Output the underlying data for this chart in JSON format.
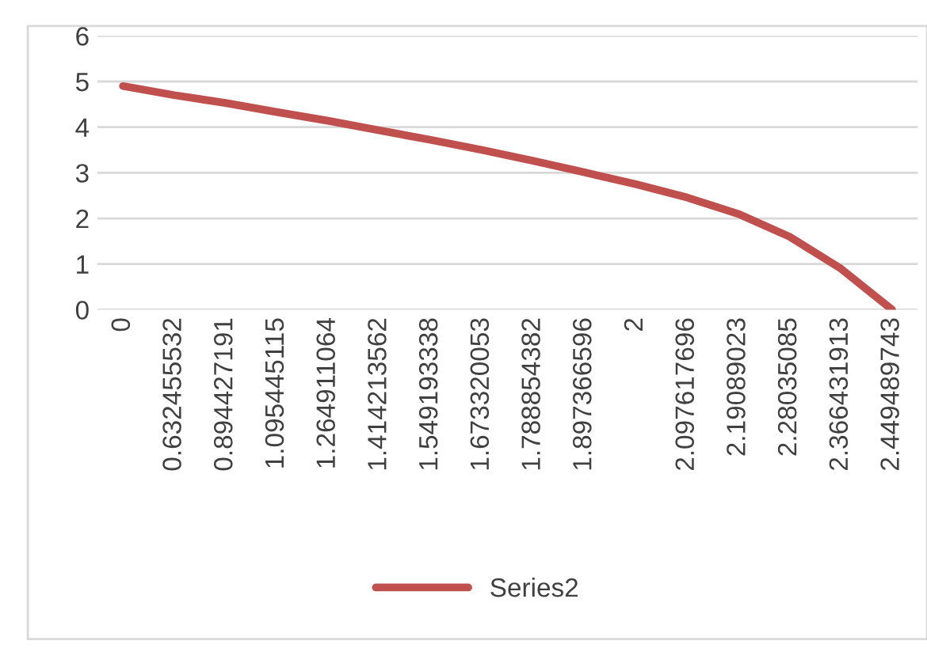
{
  "chart_data": {
    "type": "line",
    "categories": [
      "0",
      "0.632455532",
      "0.894427191",
      "1.095445115",
      "1.264911064",
      "1.414213562",
      "1.549193338",
      "1.673320053",
      "1.788854382",
      "1.897366596",
      "2",
      "2.097617696",
      "2.19089023",
      "2.28035085",
      "2.366431913",
      "2.449489743"
    ],
    "series": [
      {
        "name": "Series2",
        "color": "#c0504d",
        "values": [
          4.9,
          4.7,
          4.53,
          4.33,
          4.14,
          3.93,
          3.72,
          3.5,
          3.26,
          3.01,
          2.75,
          2.46,
          2.1,
          1.6,
          0.9,
          0
        ]
      }
    ],
    "ylim": [
      0,
      6
    ],
    "yticks": [
      0,
      1,
      2,
      3,
      4,
      5,
      6
    ],
    "grid": "y",
    "legend": "bottom",
    "marker": "none",
    "line_style": "solid"
  }
}
